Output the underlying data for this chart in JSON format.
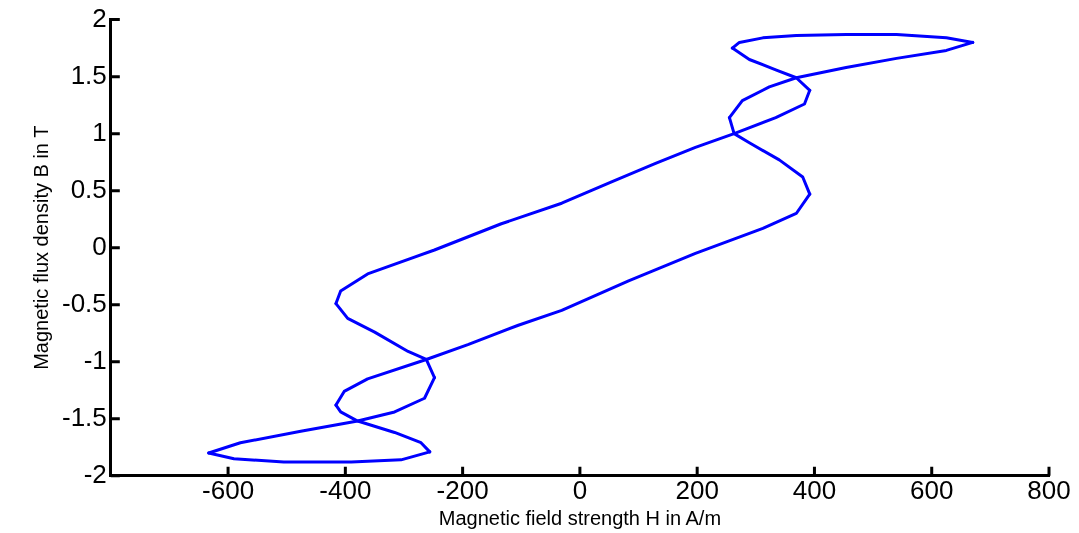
{
  "chart_data": {
    "type": "line",
    "xlabel": "Magnetic field strength H in A/m",
    "ylabel": "Magnetic flux density B in T",
    "xlim": [
      -800,
      800
    ],
    "xticks": [
      -600,
      -400,
      -200,
      0,
      200,
      400,
      600,
      800
    ],
    "ylim": [
      -2,
      2
    ],
    "yticks": [
      -2,
      -1.5,
      -1,
      -0.5,
      0,
      0.5,
      1,
      1.5,
      2
    ],
    "grid": false,
    "legend": false,
    "marker": "none",
    "line_style": "solid",
    "series": [
      {
        "color": "#0000ff",
        "x": [
          670,
          625,
          540,
          454,
          369,
          312,
          272,
          260
        ],
        "values": [
          1.8,
          1.84,
          1.87,
          1.87,
          1.86,
          1.84,
          1.8,
          1.75
        ]
      },
      {
        "color": "#0000ff",
        "x": [
          260,
          289,
          334,
          369,
          392
        ],
        "values": [
          1.75,
          1.65,
          1.56,
          1.49,
          1.38
        ]
      },
      {
        "color": "#0000ff",
        "x": [
          392,
          383,
          334,
          263,
          197,
          129,
          55,
          -31,
          -134,
          -248,
          -362,
          -408,
          -416
        ],
        "values": [
          1.38,
          1.26,
          1.14,
          1.0,
          0.88,
          0.74,
          0.58,
          0.39,
          0.21,
          -0.02,
          -0.23,
          -0.38,
          -0.49
        ]
      },
      {
        "color": "#0000ff",
        "x": [
          -416,
          -396,
          -350,
          -293,
          -262,
          -248
        ],
        "values": [
          -0.49,
          -0.62,
          -0.74,
          -0.91,
          -0.98,
          -1.14
        ]
      },
      {
        "color": "#0000ff",
        "x": [
          -248,
          -265,
          -316,
          -379,
          -476,
          -579,
          -633
        ],
        "values": [
          -1.14,
          -1.32,
          -1.44,
          -1.52,
          -1.61,
          -1.71,
          -1.8
        ]
      },
      {
        "color": "#0000ff",
        "x": [
          -633,
          -590,
          -505,
          -390,
          -305,
          -256
        ],
        "values": [
          -1.8,
          -1.85,
          -1.88,
          -1.88,
          -1.86,
          -1.79
        ]
      },
      {
        "color": "#0000ff",
        "x": [
          -256,
          -271,
          -316,
          -379,
          -408,
          -416
        ],
        "values": [
          -1.79,
          -1.71,
          -1.62,
          -1.52,
          -1.44,
          -1.38
        ]
      },
      {
        "color": "#0000ff",
        "x": [
          -416,
          -402,
          -362,
          -262,
          -191,
          -105,
          -31,
          83,
          197,
          312,
          369,
          392
        ],
        "values": [
          -1.38,
          -1.26,
          -1.15,
          -0.98,
          -0.85,
          -0.68,
          -0.55,
          -0.29,
          -0.05,
          0.17,
          0.3,
          0.47
        ]
      },
      {
        "color": "#0000ff",
        "x": [
          392,
          380,
          340,
          289,
          263,
          255
        ],
        "values": [
          0.47,
          0.62,
          0.77,
          0.92,
          1.0,
          1.14
        ]
      },
      {
        "color": "#0000ff",
        "x": [
          255,
          277,
          323,
          369,
          454,
          540,
          625,
          670
        ],
        "values": [
          1.14,
          1.29,
          1.41,
          1.49,
          1.58,
          1.66,
          1.73,
          1.8
        ]
      }
    ]
  }
}
